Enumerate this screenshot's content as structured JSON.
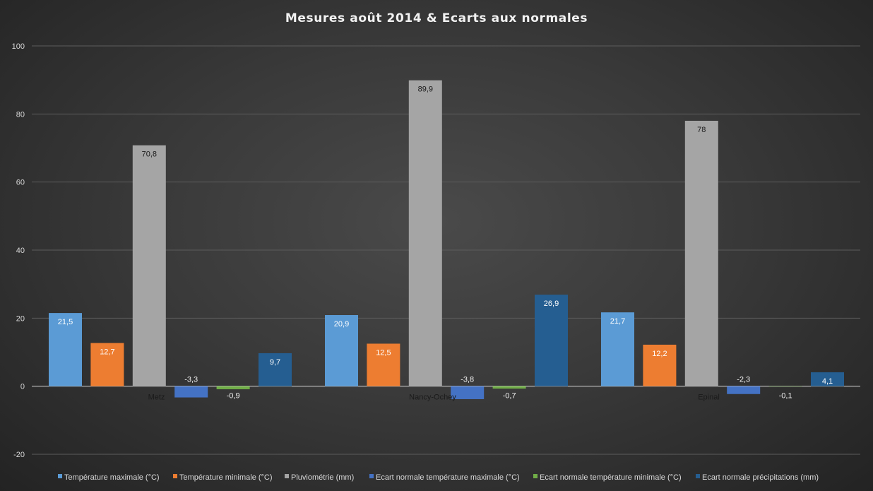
{
  "chart_data": {
    "type": "bar",
    "title": "Mesures août 2014 & Ecarts aux normales",
    "categories": [
      "Metz",
      "Nancy-Ochey",
      "Epinal"
    ],
    "ylim": [
      -20,
      100
    ],
    "yticks": [
      -20,
      0,
      20,
      40,
      60,
      80,
      100
    ],
    "grid": true,
    "legend_position": "bottom",
    "series": [
      {
        "name": "Température maximale (°C)",
        "values": [
          21.5,
          20.9,
          21.7
        ],
        "labels": [
          "21,5",
          "20,9",
          "21,7"
        ],
        "color": "#5b9bd5"
      },
      {
        "name": "Température minimale (°C)",
        "values": [
          12.7,
          12.5,
          12.2
        ],
        "labels": [
          "12,7",
          "12,5",
          "12,2"
        ],
        "color": "#ed7d31"
      },
      {
        "name": "Pluviométrie (mm)",
        "values": [
          70.8,
          89.9,
          78
        ],
        "labels": [
          "70,8",
          "89,9",
          "78"
        ],
        "color": "#a5a5a5"
      },
      {
        "name": "Ecart normale température maximale (°C)",
        "values": [
          -3.3,
          -3.8,
          -2.3
        ],
        "labels": [
          "-3,3",
          "-3,8",
          "-2,3"
        ],
        "color": "#4472c4"
      },
      {
        "name": "Ecart normale température minimale (°C)",
        "values": [
          -0.9,
          -0.7,
          -0.1
        ],
        "labels": [
          "-0,9",
          "-0,7",
          "-0,1"
        ],
        "color": "#70ad47"
      },
      {
        "name": "Ecart normale précipitations (mm)",
        "values": [
          9.7,
          26.9,
          4.1
        ],
        "labels": [
          "9,7",
          "26,9",
          "4,1"
        ],
        "color": "#255e91"
      }
    ]
  }
}
